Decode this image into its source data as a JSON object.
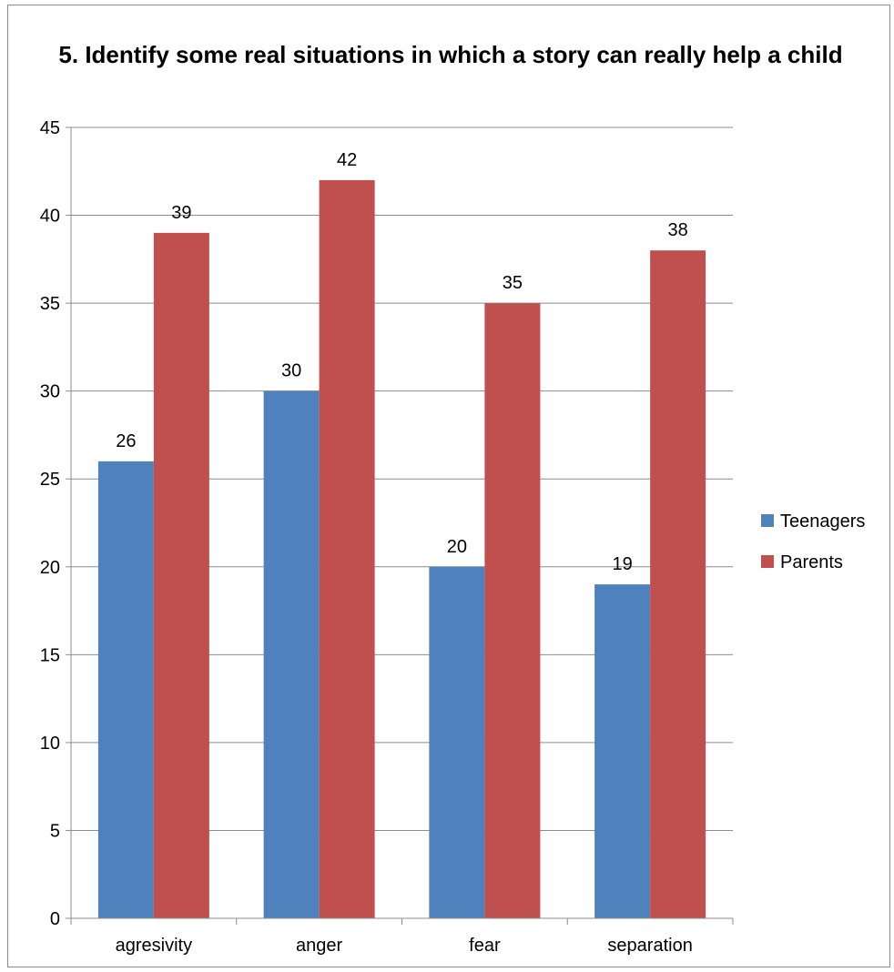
{
  "chart_data": {
    "type": "bar",
    "title": "5. Identify some real situations in which  a story can really help a child",
    "categories": [
      "agresivity",
      "anger",
      "fear",
      "separation"
    ],
    "series": [
      {
        "name": "Teenagers",
        "color": "#4f81bd",
        "values": [
          26,
          30,
          20,
          19
        ]
      },
      {
        "name": "Parents",
        "color": "#c0504d",
        "values": [
          39,
          42,
          35,
          38
        ]
      }
    ],
    "ylim": [
      0,
      45
    ],
    "yticks": [
      0,
      5,
      10,
      15,
      20,
      25,
      30,
      35,
      40,
      45
    ],
    "grid": true,
    "legend_position": "right"
  }
}
